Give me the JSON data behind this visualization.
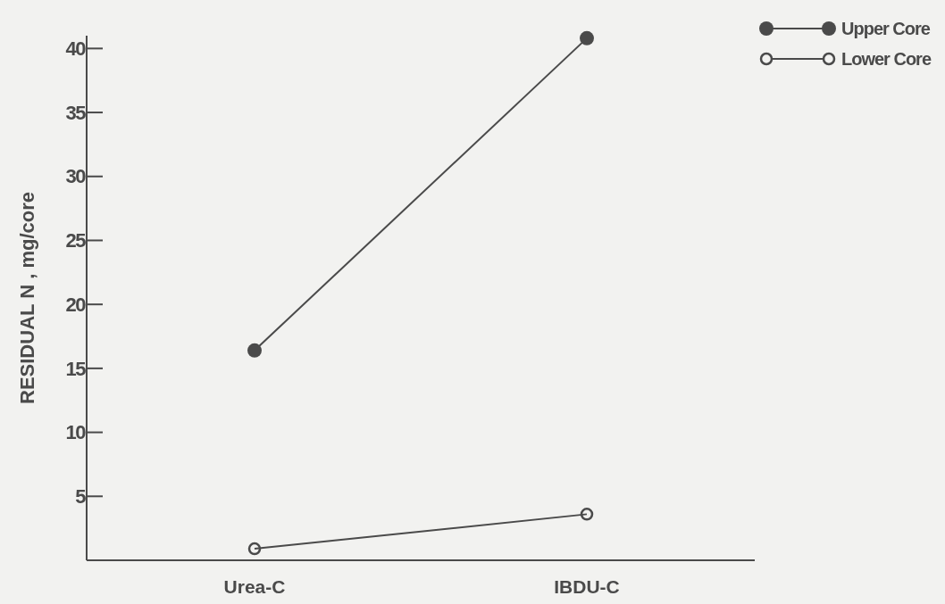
{
  "chart_data": {
    "type": "line",
    "ylabel": "RESIDUAL N , mg/core",
    "categories": [
      "Urea-C",
      "IBDU-C"
    ],
    "series": [
      {
        "name": "Upper Core",
        "color": "#4a4a4a",
        "values": [
          16.4,
          40.8
        ]
      },
      {
        "name": "Lower Core",
        "color": "#4a4a4a",
        "values": [
          0.9,
          3.6
        ]
      }
    ],
    "ylim": [
      0,
      41
    ],
    "yticks": [
      5,
      10,
      15,
      20,
      25,
      30,
      35,
      40
    ],
    "marker": "circle",
    "legend": "top right"
  }
}
